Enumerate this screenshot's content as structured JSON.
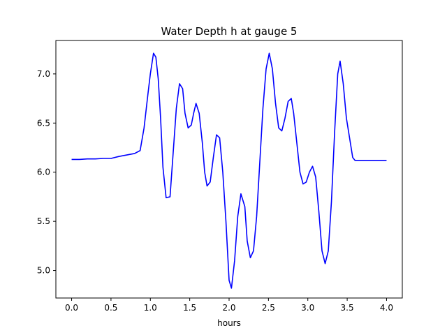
{
  "chart_data": {
    "type": "line",
    "title": "Water Depth h at gauge 5",
    "xlabel": "hours",
    "ylabel": "",
    "xlim": [
      -0.2,
      4.2
    ],
    "ylim": [
      4.72,
      7.34
    ],
    "xticks": [
      0.0,
      0.5,
      1.0,
      1.5,
      2.0,
      2.5,
      3.0,
      3.5,
      4.0
    ],
    "xtick_labels": [
      "0.0",
      "0.5",
      "1.0",
      "1.5",
      "2.0",
      "2.5",
      "3.0",
      "3.5",
      "4.0"
    ],
    "yticks": [
      5.0,
      5.5,
      6.0,
      6.5,
      7.0
    ],
    "ytick_labels": [
      "5.0",
      "5.5",
      "6.0",
      "6.5",
      "7.0"
    ],
    "grid": false,
    "series": [
      {
        "color": "#0000ff",
        "x": [
          0.0,
          0.1,
          0.2,
          0.3,
          0.4,
          0.5,
          0.6,
          0.7,
          0.8,
          0.87,
          0.92,
          0.97,
          1.0,
          1.04,
          1.07,
          1.1,
          1.13,
          1.16,
          1.2,
          1.25,
          1.29,
          1.33,
          1.37,
          1.41,
          1.44,
          1.48,
          1.52,
          1.55,
          1.58,
          1.62,
          1.66,
          1.69,
          1.72,
          1.76,
          1.8,
          1.84,
          1.88,
          1.92,
          1.96,
          2.0,
          2.03,
          2.07,
          2.11,
          2.15,
          2.2,
          2.23,
          2.27,
          2.31,
          2.35,
          2.39,
          2.43,
          2.47,
          2.51,
          2.55,
          2.59,
          2.63,
          2.67,
          2.71,
          2.75,
          2.79,
          2.82,
          2.86,
          2.9,
          2.94,
          2.98,
          3.02,
          3.06,
          3.1,
          3.14,
          3.18,
          3.22,
          3.26,
          3.3,
          3.34,
          3.38,
          3.41,
          3.45,
          3.49,
          3.53,
          3.57,
          3.6,
          3.64,
          3.68,
          3.72,
          3.76,
          3.8,
          3.84,
          3.88,
          3.92,
          3.96,
          4.0
        ],
        "y": [
          6.13,
          6.13,
          6.135,
          6.135,
          6.14,
          6.14,
          6.16,
          6.175,
          6.19,
          6.22,
          6.45,
          6.8,
          7.0,
          7.21,
          7.17,
          6.95,
          6.55,
          6.05,
          5.74,
          5.75,
          6.2,
          6.65,
          6.9,
          6.85,
          6.6,
          6.45,
          6.48,
          6.6,
          6.7,
          6.6,
          6.3,
          6.0,
          5.86,
          5.9,
          6.15,
          6.38,
          6.35,
          6.0,
          5.5,
          4.9,
          4.82,
          5.1,
          5.55,
          5.78,
          5.65,
          5.3,
          5.13,
          5.2,
          5.55,
          6.1,
          6.65,
          7.05,
          7.21,
          7.05,
          6.7,
          6.45,
          6.42,
          6.55,
          6.72,
          6.75,
          6.6,
          6.3,
          6.0,
          5.88,
          5.9,
          6.0,
          6.06,
          5.95,
          5.6,
          5.2,
          5.07,
          5.2,
          5.7,
          6.4,
          7.0,
          7.13,
          6.9,
          6.55,
          6.35,
          6.15,
          6.12,
          6.12,
          6.12,
          6.12,
          6.12,
          6.12,
          6.12,
          6.12,
          6.12,
          6.12,
          6.12
        ]
      }
    ]
  }
}
